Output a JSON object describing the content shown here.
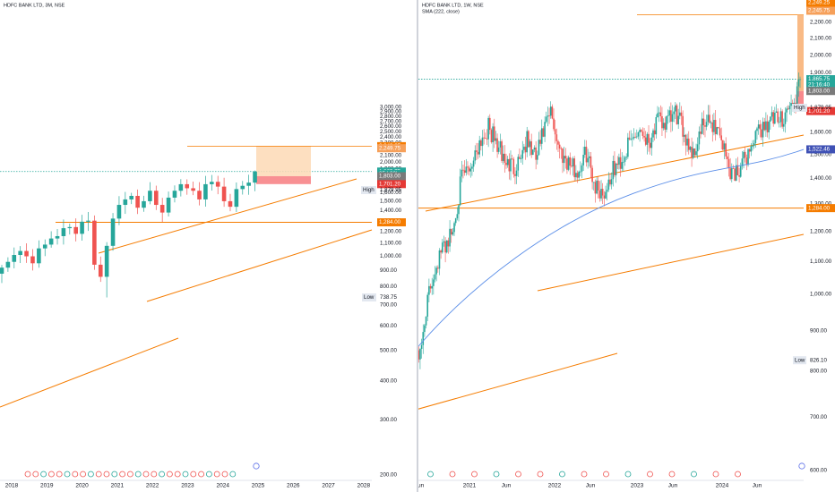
{
  "colors": {
    "up": "#26a69a",
    "down": "#ef5350",
    "orange": "#f57c00",
    "profit_zone": "#fdd9b5",
    "loss_zone": "#f77c80",
    "sma": "#5b8ee8",
    "grid": "#e6e6e6",
    "dotted": "#26a69a",
    "tag_gray": "#7a7a7a",
    "tag_red": "#e53935",
    "tag_orange": "#f57c00",
    "tag_blue": "#3f51b5",
    "tag_green": "#26a69a",
    "label_bg": "#e3e8f0"
  },
  "chart_data": [
    {
      "type": "candlestick",
      "title": "HDFC BANK LTD, 3M, NSE",
      "interval": "3M",
      "x_ticks": [
        "2018",
        "2019",
        "2020",
        "2021",
        "2022",
        "2023",
        "2024",
        "2025",
        "2026",
        "2027",
        "2028"
      ],
      "y_ticks": [
        "3,000.00",
        "2,900.00",
        "2,800.00",
        "2,700.00",
        "2,600.00",
        "2,500.00",
        "2,400.00",
        "2,300.00",
        "2,200.00",
        "2,100.00",
        "2,000.00",
        "1,900.00",
        "1,800.00",
        "1,700.00",
        "1,600.00",
        "1,500.00",
        "1,400.00",
        "1,300.00",
        "1,200.00",
        "1,100.00",
        "1,000.00",
        "900.00",
        "800.00",
        "700.00",
        "600.00",
        "500.00",
        "400.00",
        "300.00",
        "200.00"
      ],
      "ylim": [
        200,
        3000
      ],
      "price_scale": "log",
      "high_label": "High",
      "high_value": "1,879.95",
      "low_label": "Low",
      "low_value": "738.75",
      "tags": [
        {
          "text": "2,249.25",
          "kind": "orange",
          "price": 2249.25
        },
        {
          "text": "2,249.75",
          "kind": "orange_light",
          "price": 2215
        },
        {
          "text": "1,865.75",
          "kind": "green",
          "price": 1865.75
        },
        {
          "text": "25d 22h",
          "kind": "green",
          "price": 1836
        },
        {
          "text": "1,803.00",
          "kind": "gray",
          "price": 1803
        },
        {
          "text": "1,701.20",
          "kind": "red",
          "price": 1701.2
        },
        {
          "text": "1,284.00",
          "kind": "orange",
          "price": 1284
        }
      ]
    },
    {
      "type": "candlestick",
      "title": "HDFC BANK LTD, 1W, NSE",
      "indicator": "SMA (222, close)",
      "interval": "1W",
      "x_ticks": [
        "Jun",
        "2021",
        "Jun",
        "2022",
        "Jun",
        "2023",
        "Jun",
        "2024",
        "Jun"
      ],
      "y_ticks": [
        "2,200.00",
        "2,100.00",
        "2,000.00",
        "1,900.00",
        "1,800.00",
        "1,700.00",
        "1,600.00",
        "1,500.00",
        "1,400.00",
        "1,300.00",
        "1,200.00",
        "1,100.00",
        "1,000.00",
        "900.00",
        "800.00",
        "700.00",
        "600.00"
      ],
      "ylim": [
        600,
        2300
      ],
      "price_scale": "log",
      "high_label": "High",
      "high_value": "1,879.95",
      "low_label": "Low",
      "low_value": "826.10",
      "tags": [
        {
          "text": "2,249.25",
          "kind": "orange",
          "price": 2249.25
        },
        {
          "text": "2,245.75",
          "kind": "orange_light",
          "price": 2215
        },
        {
          "text": "1,865.75",
          "kind": "green",
          "price": 1865.75
        },
        {
          "text": "21:16:40",
          "kind": "green",
          "price": 1836
        },
        {
          "text": "1,803.00",
          "kind": "gray",
          "price": 1803
        },
        {
          "text": "1,701.20",
          "kind": "red",
          "price": 1701.2
        },
        {
          "text": "1,522.46",
          "kind": "blue",
          "price": 1522.46
        },
        {
          "text": "1,284.00",
          "kind": "orange",
          "price": 1284
        }
      ]
    }
  ]
}
